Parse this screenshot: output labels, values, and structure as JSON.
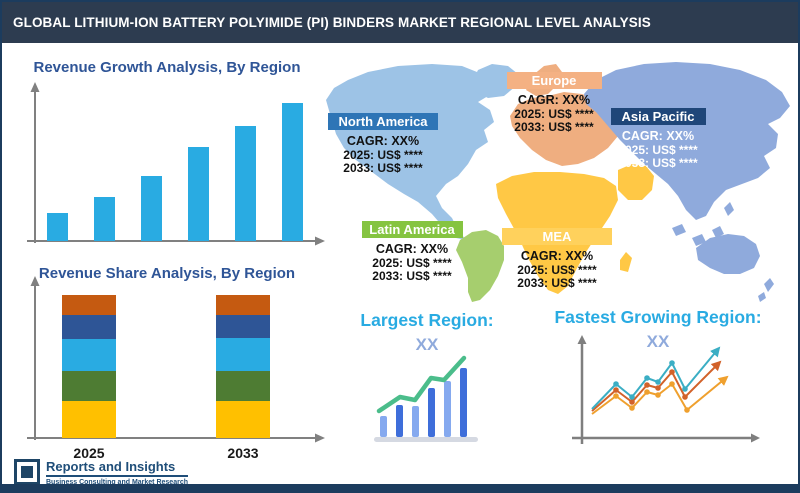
{
  "header": {
    "title": "GLOBAL LITHIUM-ION BATTERY POLYIMIDE (PI) BINDERS MARKET REGIONAL LEVEL ANALYSIS"
  },
  "growth_chart": {
    "title": "Revenue Growth Analysis, By Region"
  },
  "share_chart": {
    "title": "Revenue Share Analysis, By Region",
    "x_labels": [
      "2025",
      "2033"
    ]
  },
  "regions": [
    {
      "name": "North America",
      "cagr": "CAGR: XX%",
      "line_2025": "2025: US$ ****",
      "line_2033": "2033: US$ ****",
      "label_bg": "#2E75B6",
      "label_text": "#FFFFFF",
      "text_color": "#111111"
    },
    {
      "name": "Europe",
      "cagr": "CAGR: XX%",
      "line_2025": "2025: US$ ****",
      "line_2033": "2033: US$ ****",
      "label_bg": "#F4B183",
      "label_text": "#FFFFFF",
      "text_color": "#111111"
    },
    {
      "name": "Asia Pacific",
      "cagr": "CAGR: XX%",
      "line_2025": "2025: US$ ****",
      "line_2033": "2033: US$ ****",
      "label_bg": "#1F4679",
      "label_text": "#FFFFFF",
      "text_color": "#FFFFFF"
    },
    {
      "name": "Latin America",
      "cagr": "CAGR: XX%",
      "line_2025": "2025: US$ ****",
      "line_2033": "2033: US$ ****",
      "label_bg": "#85C441",
      "label_text": "#FFFFFF",
      "text_color": "#111111"
    },
    {
      "name": "MEA",
      "cagr": "CAGR: XX%",
      "line_2025": "2025: US$ ****",
      "line_2033": "2033: US$ ****",
      "label_bg": "#FFD15C",
      "label_text": "#FFFFFF",
      "text_color": "#111111"
    }
  ],
  "panels": {
    "largest": {
      "title": "Largest Region:",
      "value": "XX"
    },
    "fastest": {
      "title": "Fastest Growing Region:",
      "value": "XX"
    }
  },
  "logo": {
    "title": "Reports and Insights",
    "tagline": "Business Consulting and Market Research"
  },
  "map": {
    "continent_colors": {
      "north_america": "#9DC3E6",
      "latin_america": "#A6CE6E",
      "europe": "#EFAE80",
      "africa_mea": "#FFC845",
      "asia_pacific": "#8FAADC"
    }
  },
  "colors": {
    "header_bg": "#2D3C50",
    "frame_navy": "#1C3C5E",
    "chart_title_blue": "#2F5597",
    "growth_bar_cyan": "#29ABE2",
    "panel_title_cyan": "#29ABE2",
    "panel_value_periwinkle": "#8FAADC",
    "axis_gray": "#808080",
    "logo_navy": "#1F4E79"
  },
  "chart_data": [
    {
      "type": "bar",
      "title": "Revenue Growth Analysis, By Region",
      "categories": [
        "",
        "",
        "",
        "",
        "",
        ""
      ],
      "values": [
        20,
        32,
        47,
        68,
        83,
        100
      ],
      "ylim": [
        0,
        100
      ],
      "bar_color": "#29ABE2",
      "xlabel": "",
      "ylabel": "",
      "grid": false,
      "note": "placeholder growth chart; no numeric axis labels shown, bar values estimated relative to tallest bar = 100"
    },
    {
      "type": "bar",
      "subtype": "stacked",
      "title": "Revenue Share Analysis, By Region",
      "categories": [
        "2025",
        "2033"
      ],
      "series": [
        {
          "name": "yellow-segment",
          "color": "#FFC000",
          "values": [
            26,
            26
          ]
        },
        {
          "name": "green-segment",
          "color": "#4E7C33",
          "values": [
            21,
            21
          ]
        },
        {
          "name": "light-blue-segment",
          "color": "#29ABE2",
          "values": [
            22,
            23
          ]
        },
        {
          "name": "dark-blue-segment",
          "color": "#2E5596",
          "values": [
            17,
            16
          ]
        },
        {
          "name": "orange-segment",
          "color": "#C55A11",
          "values": [
            14,
            14
          ]
        }
      ],
      "grid": false,
      "note": "series listed bottom-to-top; segment sizes are % of bar height estimated from pixels"
    }
  ]
}
